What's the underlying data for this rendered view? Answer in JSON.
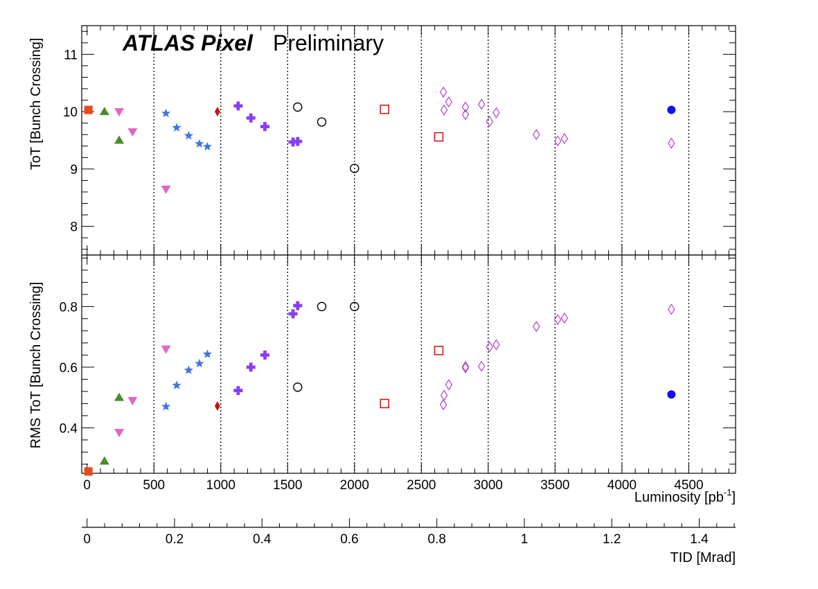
{
  "chart_data": {
    "type": "scatter",
    "header": {
      "bold": "ATLAS Pixel",
      "normal": "Preliminary"
    },
    "x_axis": {
      "label_main": "Luminosity [pb",
      "label_sup": "-1",
      "label_end": "]",
      "range": [
        -40,
        4850
      ],
      "ticks": [
        0,
        500,
        1000,
        1500,
        2000,
        2500,
        3000,
        3500,
        4000,
        4500
      ],
      "tick_labels": [
        "0",
        "500",
        "1000",
        "1500",
        "2000",
        "2500",
        "3000",
        "3500",
        "4000",
        "4500"
      ],
      "gridlines": [
        500,
        1000,
        1500,
        2000,
        2500,
        3000,
        3500,
        4000,
        4500
      ]
    },
    "secondary_x_axis": {
      "label": "TID [Mrad]",
      "ticks": [
        0,
        0.2,
        0.4,
        0.6,
        0.8,
        1,
        1.2,
        1.4
      ],
      "tick_labels": [
        "0",
        "0.2",
        "0.4",
        "0.6",
        "0.8",
        "1",
        "1.2",
        "1.4"
      ],
      "lum_per_unit": 3270
    },
    "top_panel": {
      "ylabel": "ToT [Bunch Crossing]",
      "ylim": [
        7.5,
        11.5
      ],
      "ticks": [
        8,
        9,
        10,
        11
      ],
      "tick_labels": [
        "8",
        "9",
        "10",
        "11"
      ]
    },
    "bottom_panel": {
      "ylabel": "RMS ToT [Bunch Crossing]",
      "ylim": [
        0.25,
        0.97
      ],
      "ticks": [
        0.4,
        0.6,
        0.8
      ],
      "tick_labels": [
        "0.4",
        "0.6",
        "0.8"
      ]
    },
    "series": [
      {
        "marker": "square_filled",
        "color": "#e8491d",
        "points": [
          [
            10,
            10.03,
            0.256
          ]
        ]
      },
      {
        "marker": "triangle_up",
        "color": "#4b8b2a",
        "points": [
          [
            130,
            10.0,
            0.29
          ],
          [
            240,
            9.5,
            0.5
          ]
        ]
      },
      {
        "marker": "triangle_down",
        "color": "#e066c2",
        "points": [
          [
            240,
            10.0,
            0.385
          ],
          [
            340,
            9.65,
            0.49
          ],
          [
            590,
            8.65,
            0.66
          ]
        ]
      },
      {
        "marker": "star",
        "color": "#3f76e0",
        "points": [
          [
            590,
            9.97,
            0.47
          ],
          [
            670,
            9.72,
            0.54
          ],
          [
            760,
            9.58,
            0.59
          ],
          [
            840,
            9.44,
            0.612
          ],
          [
            900,
            9.39,
            0.643
          ]
        ]
      },
      {
        "marker": "diamond_filled",
        "color": "#cc1010",
        "points": [
          [
            975,
            10.0,
            0.472
          ]
        ]
      },
      {
        "marker": "cross",
        "color": "#8a3cf5",
        "points": [
          [
            1130,
            10.1,
            0.523
          ],
          [
            1225,
            9.89,
            0.6
          ],
          [
            1330,
            9.74,
            0.64
          ],
          [
            1540,
            9.47,
            0.776
          ],
          [
            1575,
            9.48,
            0.803
          ]
        ]
      },
      {
        "marker": "circle_open",
        "color": "#000000",
        "points": [
          [
            1575,
            10.08,
            0.534
          ],
          [
            1755,
            9.82,
            0.8
          ],
          [
            2000,
            9.01,
            0.8
          ]
        ]
      },
      {
        "marker": "square_open",
        "color": "#cc1010",
        "points": [
          [
            2225,
            10.04,
            0.48
          ],
          [
            2630,
            9.56,
            0.655
          ]
        ]
      },
      {
        "marker": "diamond_open",
        "color": "#b54fcf",
        "points": [
          [
            2665,
            10.34,
            0.476
          ],
          [
            2670,
            10.03,
            0.507
          ],
          [
            2705,
            10.17,
            0.542
          ],
          [
            2830,
            10.08,
            0.598
          ],
          [
            2830,
            9.95,
            0.602
          ],
          [
            2950,
            10.13,
            0.603
          ],
          [
            3010,
            9.83,
            0.667
          ],
          [
            3060,
            9.98,
            0.674
          ],
          [
            3360,
            9.6,
            0.734
          ],
          [
            3520,
            9.49,
            0.757
          ],
          [
            3570,
            9.53,
            0.762
          ],
          [
            4370,
            9.45,
            0.791
          ]
        ]
      },
      {
        "marker": "circle_filled",
        "color": "#1010f0",
        "points": [
          [
            4370,
            10.03,
            0.51
          ]
        ]
      }
    ]
  }
}
